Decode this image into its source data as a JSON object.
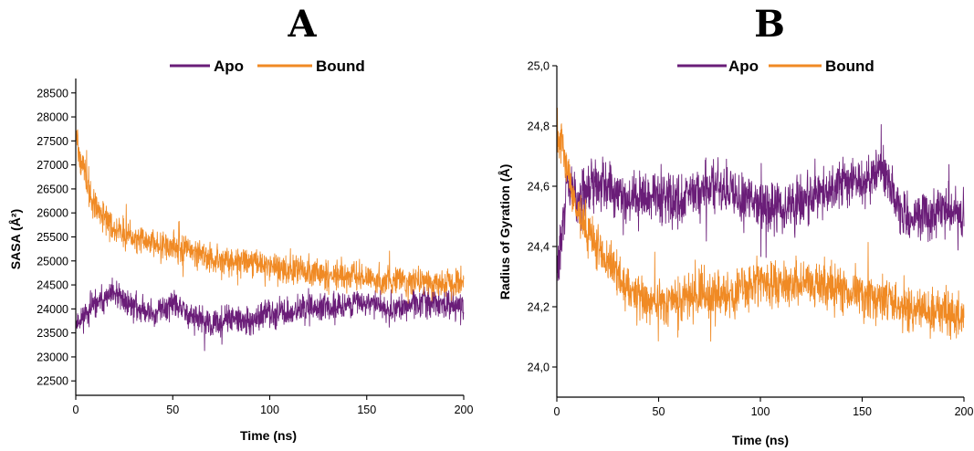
{
  "colors": {
    "apo": "#6a1d78",
    "bound": "#f08a24"
  },
  "chart_data": [
    {
      "panel_label": "A",
      "type": "line",
      "xlabel": "Time (ns)",
      "ylabel": "SASA (Å²)",
      "xlim": [
        0,
        200
      ],
      "ylim": [
        22200,
        28800
      ],
      "xticks": [
        0,
        50,
        100,
        150,
        200
      ],
      "xtick_labels": [
        "0",
        "50",
        "100",
        "150",
        "200"
      ],
      "yticks": [
        22500,
        23000,
        23500,
        24000,
        24500,
        25000,
        25500,
        26000,
        26500,
        27000,
        27500,
        28000,
        28500
      ],
      "ytick_labels": [
        "22500",
        "23000",
        "23500",
        "24000",
        "24500",
        "25000",
        "25500",
        "26000",
        "26500",
        "27000",
        "27500",
        "28000",
        "28500"
      ],
      "legend_position": "top",
      "series": [
        {
          "name": "Apo",
          "color": "#6a1d78",
          "x": [
            0,
            10,
            20,
            30,
            40,
            50,
            60,
            70,
            80,
            90,
            100,
            110,
            120,
            130,
            140,
            150,
            160,
            170,
            180,
            190,
            200
          ],
          "y": [
            23700,
            24100,
            24300,
            24050,
            23900,
            24100,
            23850,
            23650,
            23800,
            23700,
            23950,
            23900,
            24050,
            24000,
            24100,
            24150,
            24000,
            24050,
            24150,
            24100,
            24000
          ],
          "noise": 750
        },
        {
          "name": "Bound",
          "color": "#f08a24",
          "x": [
            0,
            5,
            10,
            20,
            30,
            40,
            50,
            60,
            70,
            80,
            90,
            100,
            110,
            120,
            130,
            140,
            150,
            160,
            170,
            180,
            190,
            200
          ],
          "y": [
            27600,
            26700,
            26100,
            25700,
            25500,
            25350,
            25300,
            25200,
            25050,
            25000,
            25000,
            24900,
            24800,
            24800,
            24700,
            24700,
            24650,
            24600,
            24600,
            24550,
            24550,
            24500
          ],
          "noise": 800
        }
      ]
    },
    {
      "panel_label": "B",
      "type": "line",
      "xlabel": "Time (ns)",
      "ylabel": "Radius of Gyration (Å)",
      "xlim": [
        0,
        200
      ],
      "ylim": [
        23.9,
        25.0
      ],
      "xticks": [
        0,
        50,
        100,
        150,
        200
      ],
      "xtick_labels": [
        "0",
        "50",
        "100",
        "150",
        "200"
      ],
      "yticks": [
        24.0,
        24.2,
        24.4,
        24.6,
        24.8,
        25.0
      ],
      "ytick_labels": [
        "24,0",
        "24,2",
        "24,4",
        "24,6",
        "24,8",
        "25,0"
      ],
      "legend_position": "top",
      "series": [
        {
          "name": "Apo",
          "color": "#6a1d78",
          "x": [
            0,
            5,
            10,
            20,
            30,
            40,
            50,
            60,
            70,
            80,
            90,
            100,
            110,
            120,
            130,
            140,
            150,
            160,
            170,
            180,
            190,
            200
          ],
          "y": [
            24.3,
            24.6,
            24.55,
            24.62,
            24.58,
            24.55,
            24.57,
            24.55,
            24.58,
            24.6,
            24.55,
            24.55,
            24.52,
            24.55,
            24.57,
            24.62,
            24.6,
            24.65,
            24.5,
            24.5,
            24.52,
            24.5
          ],
          "noise": 0.22
        },
        {
          "name": "Bound",
          "color": "#f08a24",
          "x": [
            0,
            3,
            8,
            15,
            25,
            35,
            45,
            55,
            70,
            85,
            100,
            115,
            130,
            145,
            160,
            170,
            180,
            190,
            200
          ],
          "y": [
            24.75,
            24.75,
            24.55,
            24.45,
            24.35,
            24.25,
            24.22,
            24.22,
            24.24,
            24.24,
            24.28,
            24.28,
            24.27,
            24.25,
            24.22,
            24.2,
            24.18,
            24.18,
            24.15
          ],
          "noise": 0.2
        }
      ]
    }
  ]
}
